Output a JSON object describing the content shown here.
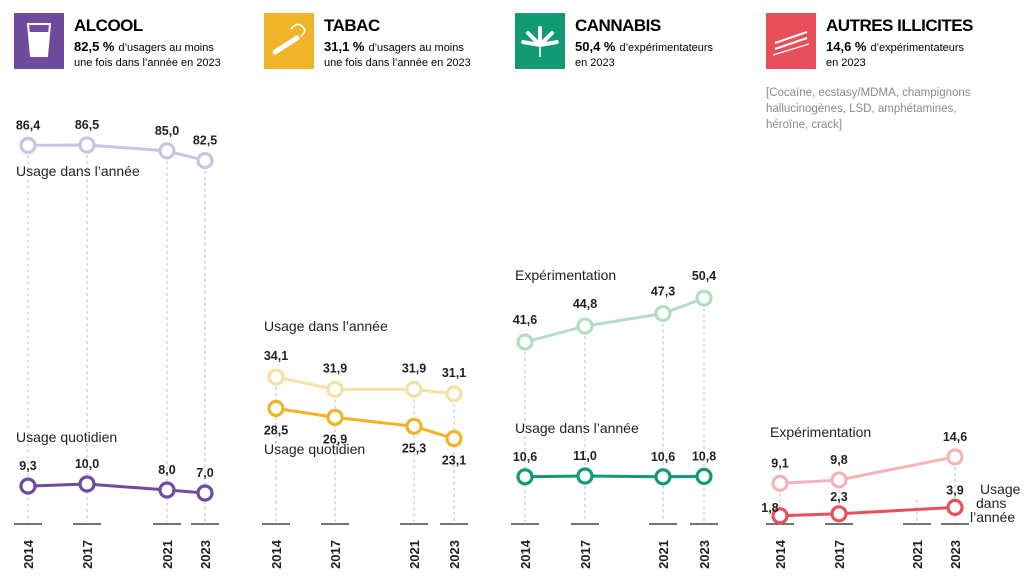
{
  "panels": [
    {
      "key": "alcool",
      "title": "ALCOOL",
      "stat": "82,5 %",
      "desc1": "d’usagers au moins",
      "desc2": "une fois dans l’année en 2023",
      "icon": "glass-icon",
      "color": "#6f4b9e",
      "note": []
    },
    {
      "key": "tabac",
      "title": "TABAC",
      "stat": "31,1 %",
      "desc1": "d’usagers au moins",
      "desc2": "une fois dans l’année en 2023",
      "icon": "cigarette-icon",
      "color": "#f0b429",
      "note": []
    },
    {
      "key": "cannabis",
      "title": "CANNABIS",
      "stat": "50,4 %",
      "desc1": "d’expérimentateurs",
      "desc2": "en 2023",
      "icon": "cannabis-leaf-icon",
      "color": "#129a73",
      "note": []
    },
    {
      "key": "autres",
      "title": "AUTRES ILLICITES",
      "stat": "14,6 %",
      "desc1": "d’expérimentateurs",
      "desc2": "en 2023",
      "icon": "lines-icon",
      "color": "#e84f5b",
      "note": [
        "[Cocaïne, ecstasy/MDMA, champignons",
        "hallucinogènes, LSD, amphétamines,",
        "héroïne, crack]"
      ]
    }
  ],
  "chart_data": [
    {
      "type": "line",
      "title": "ALCOOL",
      "x": [
        "2014",
        "2017",
        "2021",
        "2023"
      ],
      "series": [
        {
          "name": "Usage dans l’année",
          "values": [
            86.4,
            86.5,
            85.0,
            82.5
          ],
          "labels": [
            "86,4",
            "86,5",
            "85,0",
            "82,5"
          ],
          "color": "#cdc3e3"
        },
        {
          "name": "Usage quotidien",
          "values": [
            9.3,
            10.0,
            8.0,
            7.0
          ],
          "labels": [
            "9,3",
            "10,0",
            "8,0",
            "7,0"
          ],
          "color": "#6f4b9e"
        }
      ]
    },
    {
      "type": "line",
      "title": "TABAC",
      "x": [
        "2014",
        "2017",
        "2021",
        "2023"
      ],
      "series": [
        {
          "name": "Usage dans l’année",
          "values": [
            34.1,
            31.9,
            31.9,
            31.1
          ],
          "labels": [
            "34,1",
            "31,9",
            "31,9",
            "31,1"
          ],
          "color": "#f5e1a6"
        },
        {
          "name": "Usage quotidien",
          "values": [
            28.5,
            26.9,
            25.3,
            23.1
          ],
          "labels": [
            "28,5",
            "26,9",
            "25,3",
            "23,1"
          ],
          "color": "#f0b429"
        }
      ]
    },
    {
      "type": "line",
      "title": "CANNABIS",
      "x": [
        "2014",
        "2017",
        "2021",
        "2023"
      ],
      "series": [
        {
          "name": "Expérimentation",
          "values": [
            41.6,
            44.8,
            47.3,
            50.4
          ],
          "labels": [
            "41,6",
            "44,8",
            "47,3",
            "50,4"
          ],
          "color": "#b4ddc6"
        },
        {
          "name": "Usage dans l’année",
          "values": [
            10.6,
            11.0,
            10.6,
            10.8
          ],
          "labels": [
            "10,6",
            "11,0",
            "10,6",
            "10,8"
          ],
          "color": "#129a73"
        }
      ]
    },
    {
      "type": "line",
      "title": "AUTRES ILLICITES",
      "x": [
        "2014",
        "2017",
        "2021",
        "2023"
      ],
      "series": [
        {
          "name": "Expérimentation",
          "values": [
            9.1,
            9.8,
            null,
            14.6
          ],
          "labels": [
            "9,1",
            "9,8",
            "",
            "14,6"
          ],
          "color": "#f5b3b9"
        },
        {
          "name": "Usage dans l’année",
          "values": [
            1.8,
            2.3,
            null,
            3.9
          ],
          "labels": [
            "1,8",
            "2,3",
            "",
            "3,9"
          ],
          "color": "#e84f5b"
        }
      ]
    }
  ]
}
